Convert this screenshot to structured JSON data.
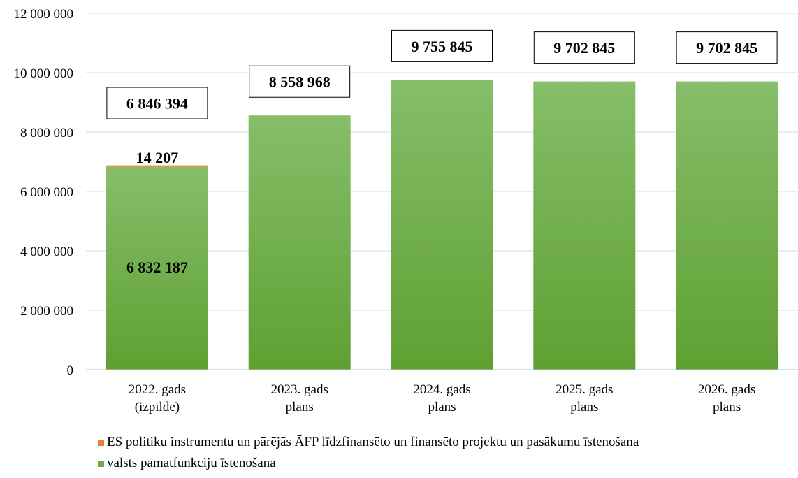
{
  "chart_data": {
    "type": "bar",
    "stacked": true,
    "categories": [
      [
        "2022. gads",
        "(izpilde)"
      ],
      [
        "2023. gads",
        "plāns"
      ],
      [
        "2024. gads",
        "plāns"
      ],
      [
        "2025. gads",
        "plāns"
      ],
      [
        "2026. gads",
        "plāns"
      ]
    ],
    "series": [
      {
        "name": "valsts pamatfunkciju īstenošana",
        "color": "#70AD47",
        "values": [
          6832187,
          8558968,
          9755845,
          9702845,
          9702845
        ],
        "labels": [
          "6 832 187",
          null,
          null,
          null,
          null
        ]
      },
      {
        "name": "ES politiku instrumentu un pārējās ĀFP līdzfinansēto un finansēto projektu un pasākumu īstenošana",
        "color": "#ED7D31",
        "values": [
          14207,
          0,
          0,
          0,
          0
        ],
        "labels": [
          "14 207",
          null,
          null,
          null,
          null
        ]
      }
    ],
    "totals": [
      6846394,
      8558968,
      9755845,
      9702845,
      9702845
    ],
    "total_labels": [
      "6 846 394",
      "8 558 968",
      "9 755 845",
      "9 702 845",
      "9 702 845"
    ],
    "ylim": [
      0,
      12000000
    ],
    "yticks": [
      0,
      2000000,
      4000000,
      6000000,
      8000000,
      10000000,
      12000000
    ],
    "ytick_labels": [
      "0",
      "2 000 000",
      "4 000 000",
      "6 000 000",
      "8 000 000",
      "10 000 000",
      "12 000 000"
    ],
    "grid": true,
    "legend_position": "bottom-left",
    "title": "",
    "xlabel": "",
    "ylabel": ""
  }
}
